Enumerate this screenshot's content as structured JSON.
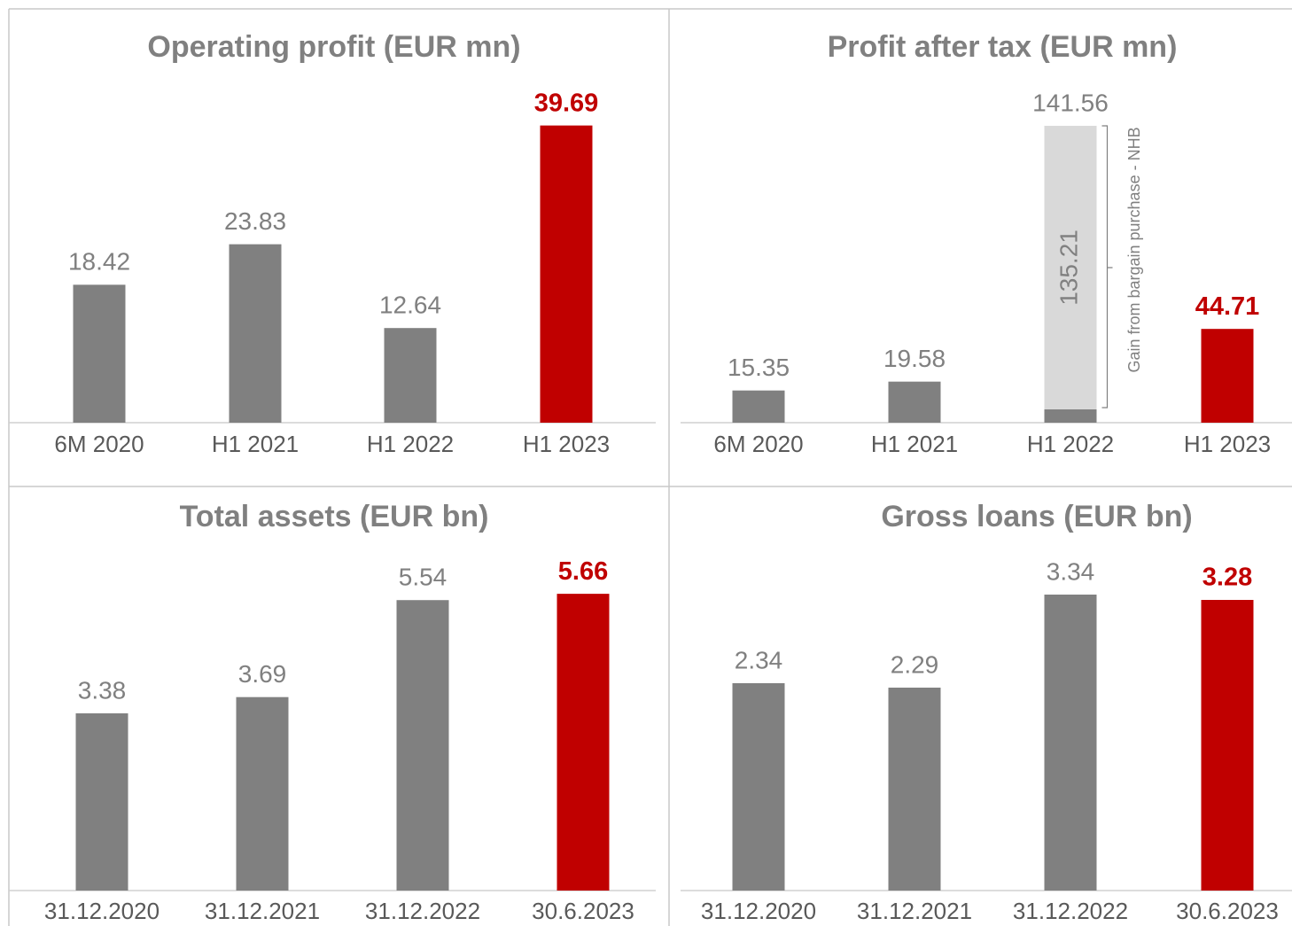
{
  "chart_data": [
    {
      "type": "bar",
      "title": "Operating profit (EUR mn)",
      "categories": [
        "6M 2020",
        "H1 2021",
        "H1 2022",
        "H1 2023"
      ],
      "values": [
        18.42,
        23.83,
        12.64,
        39.69
      ],
      "colors": [
        "#808080",
        "#808080",
        "#808080",
        "#c00000"
      ],
      "label_bold": [
        false,
        false,
        false,
        true
      ],
      "ylim": [
        0,
        40
      ]
    },
    {
      "type": "stacked_bar",
      "title": "Profit after tax (EUR mn)",
      "categories": [
        "6M 2020",
        "H1 2021",
        "H1 2022",
        "H1 2023"
      ],
      "series": [
        {
          "values": [
            15.35,
            19.58,
            6.35,
            44.71
          ],
          "colors": [
            "#808080",
            "#808080",
            "#808080",
            "#c00000"
          ],
          "label_bold": [
            false,
            false,
            false,
            true
          ],
          "show_labels": [
            true,
            true,
            false,
            true
          ]
        },
        {
          "name": "Gain from bargain purchase - NHB",
          "color": "#d9d9d9",
          "values": [
            null,
            null,
            135.21,
            null
          ]
        }
      ],
      "totals": [
        null,
        null,
        141.56,
        null
      ],
      "ylim": [
        0,
        150
      ]
    },
    {
      "type": "bar",
      "title": "Total assets (EUR bn)",
      "categories": [
        "31.12.2020",
        "31.12.2021",
        "31.12.2022",
        "30.6.2023"
      ],
      "values": [
        3.38,
        3.69,
        5.54,
        5.66
      ],
      "colors": [
        "#808080",
        "#808080",
        "#808080",
        "#c00000"
      ],
      "label_bold": [
        false,
        false,
        false,
        true
      ],
      "ylim": [
        0,
        6
      ]
    },
    {
      "type": "bar",
      "title": "Gross loans (EUR bn)",
      "categories": [
        "31.12.2020",
        "31.12.2021",
        "31.12.2022",
        "30.6.2023"
      ],
      "values": [
        2.34,
        2.29,
        3.34,
        3.28
      ],
      "colors": [
        "#808080",
        "#808080",
        "#808080",
        "#c00000"
      ],
      "label_bold": [
        false,
        false,
        false,
        true
      ],
      "ylim": [
        0,
        3.5
      ]
    }
  ]
}
